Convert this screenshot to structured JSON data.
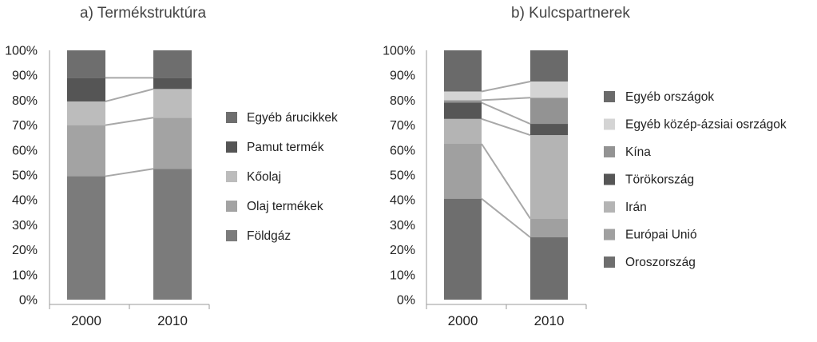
{
  "chart_data": [
    {
      "type": "bar",
      "stacked": true,
      "title": "a)  Termékstruktúra",
      "categories": [
        "2000",
        "2010"
      ],
      "yticks": [
        "0%",
        "10%",
        "20%",
        "30%",
        "40%",
        "50%",
        "60%",
        "70%",
        "80%",
        "90%",
        "100%"
      ],
      "ylim": [
        0,
        100
      ],
      "legend_position": "right",
      "series": [
        {
          "name": "Földgáz",
          "values": [
            49.5,
            52.5
          ],
          "color": "#7b7b7b"
        },
        {
          "name": "Olaj termékek",
          "values": [
            20.5,
            20.5
          ],
          "color": "#a3a3a3"
        },
        {
          "name": "Kőolaj",
          "values": [
            9.5,
            11.5
          ],
          "color": "#bcbcbc"
        },
        {
          "name": "Pamut termék",
          "values": [
            9.5,
            4.5
          ],
          "color": "#555555"
        },
        {
          "name": "Egyéb árucikkek",
          "values": [
            11,
            11
          ],
          "color": "#6e6e6e"
        }
      ]
    },
    {
      "type": "bar",
      "stacked": true,
      "title": "b)  Kulcspartnerek",
      "categories": [
        "2000",
        "2010"
      ],
      "yticks": [
        "0%",
        "10%",
        "20%",
        "30%",
        "40%",
        "50%",
        "60%",
        "70%",
        "80%",
        "90%",
        "100%"
      ],
      "ylim": [
        0,
        100
      ],
      "legend_position": "right",
      "series": [
        {
          "name": "Oroszország",
          "values": [
            40.5,
            25
          ],
          "color": "#6e6e6e"
        },
        {
          "name": "Európai Unió",
          "values": [
            22,
            7.5
          ],
          "color": "#a0a0a0"
        },
        {
          "name": "Irán",
          "values": [
            10,
            33.5
          ],
          "color": "#b4b4b4"
        },
        {
          "name": "Törökország",
          "values": [
            6.5,
            4.5
          ],
          "color": "#565656"
        },
        {
          "name": "Kína",
          "values": [
            1,
            10.5
          ],
          "color": "#939393"
        },
        {
          "name": "Egyéb közép-ázsiai osrzágok",
          "values": [
            3.5,
            6.5
          ],
          "color": "#d4d4d4"
        },
        {
          "name": "Egyéb országok",
          "values": [
            16.5,
            12.5
          ],
          "color": "#6a6a6a"
        }
      ]
    }
  ]
}
